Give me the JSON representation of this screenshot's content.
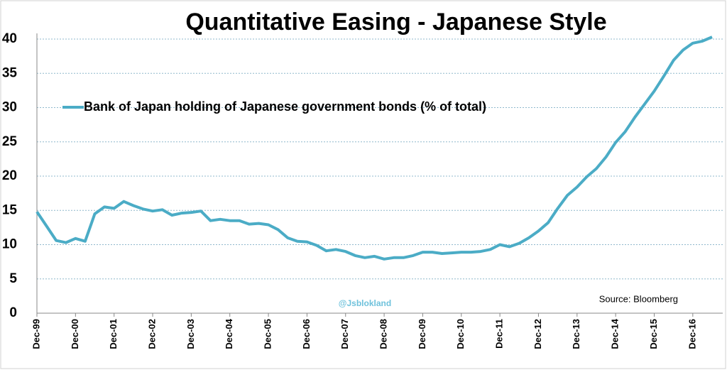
{
  "chart_data": {
    "type": "line",
    "title": "Quantitative Easing - Japanese Style",
    "source": "Source: Bloomberg",
    "watermark": "@Jsblokland",
    "categories": [
      "Dec-99",
      null,
      null,
      null,
      "Dec-00",
      null,
      null,
      null,
      "Dec-01",
      null,
      null,
      null,
      "Dec-02",
      null,
      null,
      null,
      "Dec-03",
      null,
      null,
      null,
      "Dec-04",
      null,
      null,
      null,
      "Dec-05",
      null,
      null,
      null,
      "Dec-06",
      null,
      null,
      null,
      "Dec-07",
      null,
      null,
      null,
      "Dec-08",
      null,
      null,
      null,
      "Dec-09",
      null,
      null,
      null,
      "Dec-10",
      null,
      null,
      null,
      "Dec-11",
      null,
      null,
      null,
      "Dec-12",
      null,
      null,
      null,
      "Dec-13",
      null,
      null,
      null,
      "Dec-14",
      null,
      null,
      null,
      "Dec-15",
      null,
      null,
      null,
      "Dec-16",
      null,
      null
    ],
    "series": [
      {
        "name": "Bank of Japan holding of Japanese government bonds (% of total)",
        "color": "#4bacc6",
        "values": [
          14.8,
          12.7,
          10.6,
          10.3,
          10.9,
          10.5,
          14.5,
          15.5,
          15.3,
          16.3,
          15.7,
          15.2,
          14.9,
          15.1,
          14.3,
          14.6,
          14.7,
          14.9,
          13.5,
          13.7,
          13.5,
          13.5,
          13.0,
          13.1,
          12.9,
          12.2,
          11.0,
          10.5,
          10.4,
          9.9,
          9.1,
          9.3,
          9.0,
          8.4,
          8.1,
          8.3,
          7.9,
          8.1,
          8.1,
          8.4,
          8.9,
          8.9,
          8.7,
          8.8,
          8.9,
          8.9,
          9.0,
          9.3,
          10.0,
          9.7,
          10.2,
          11.0,
          12.0,
          13.2,
          15.3,
          17.2,
          18.4,
          19.9,
          21.1,
          22.8,
          24.9,
          26.5,
          28.6,
          30.5,
          32.4,
          34.6,
          36.9,
          38.4,
          39.4,
          39.7,
          40.3
        ]
      }
    ],
    "ylim": [
      0,
      40
    ],
    "yticks": [
      0,
      5,
      10,
      15,
      20,
      25,
      30,
      35,
      40
    ],
    "grid": true
  }
}
